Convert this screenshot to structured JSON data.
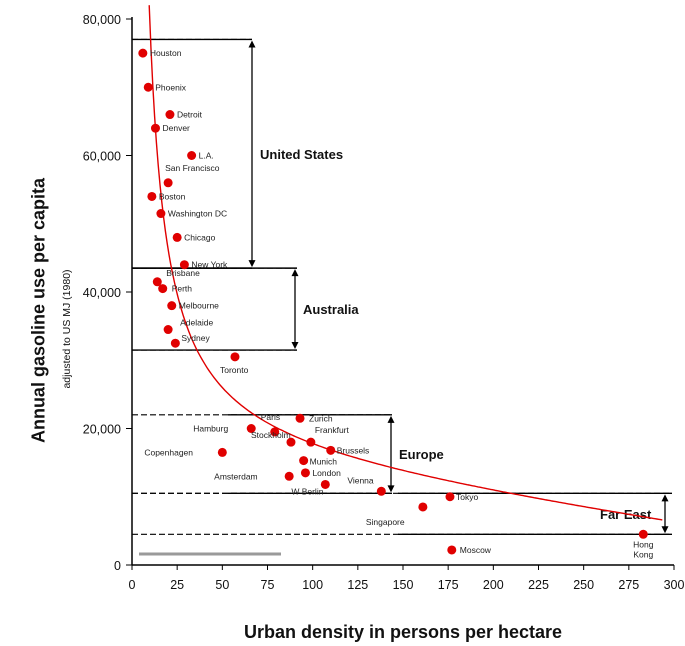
{
  "chart_data": {
    "type": "scatter",
    "xlabel": "Urban density in persons per hectare",
    "ylabel": "Annual gasoline use per capita",
    "ylabel_sub": "adjusted to US MJ (1980)",
    "xlim": [
      0,
      300
    ],
    "ylim": [
      0,
      80000
    ],
    "x_ticks": [
      0,
      25,
      50,
      75,
      100,
      125,
      150,
      175,
      200,
      225,
      250,
      275,
      300
    ],
    "y_ticks": [
      0,
      20000,
      40000,
      60000,
      80000
    ],
    "y_tick_labels": [
      "0",
      "20,000",
      "40,000",
      "60,000",
      "80,000"
    ],
    "grid": false,
    "point_color": "#e00000",
    "curve_color": "#e00000",
    "points": [
      {
        "label": "Houston",
        "x": 6,
        "y": 75000
      },
      {
        "label": "Phoenix",
        "x": 9,
        "y": 70000
      },
      {
        "label": "Detroit",
        "x": 21,
        "y": 66000
      },
      {
        "label": "Denver",
        "x": 13,
        "y": 64000
      },
      {
        "label": "L.A.",
        "x": 33,
        "y": 60000
      },
      {
        "label": "San Francisco",
        "x": 20,
        "y": 56000
      },
      {
        "label": "Boston",
        "x": 11,
        "y": 54000
      },
      {
        "label": "Washington DC",
        "x": 16,
        "y": 51500
      },
      {
        "label": "Chicago",
        "x": 25,
        "y": 48000
      },
      {
        "label": "New York",
        "x": 29,
        "y": 44000
      },
      {
        "label": "Brisbane",
        "x": 14,
        "y": 41500
      },
      {
        "label": "Perth",
        "x": 17,
        "y": 40500
      },
      {
        "label": "Melbourne",
        "x": 22,
        "y": 38000
      },
      {
        "label": "Adelaide",
        "x": 20,
        "y": 34500
      },
      {
        "label": "Sydney",
        "x": 24,
        "y": 32500
      },
      {
        "label": "Toronto",
        "x": 57,
        "y": 30500
      },
      {
        "label": "Hamburg",
        "x": 66,
        "y": 20000
      },
      {
        "label": "Paris",
        "x": 79,
        "y": 19500
      },
      {
        "label": "Zurich",
        "x": 93,
        "y": 21500
      },
      {
        "label": "Frankfurt",
        "x": 99,
        "y": 18000
      },
      {
        "label": "Stockholm",
        "x": 88,
        "y": 18000
      },
      {
        "label": "Copenhagen",
        "x": 50,
        "y": 16500
      },
      {
        "label": "Brussels",
        "x": 110,
        "y": 16800
      },
      {
        "label": "Munich",
        "x": 95,
        "y": 15300
      },
      {
        "label": "London",
        "x": 96,
        "y": 13500
      },
      {
        "label": "Amsterdam",
        "x": 87,
        "y": 13000
      },
      {
        "label": "W Berlin",
        "x": 107,
        "y": 11800
      },
      {
        "label": "Vienna",
        "x": 138,
        "y": 10800
      },
      {
        "label": "Tokyo",
        "x": 176,
        "y": 10000
      },
      {
        "label": "Singapore",
        "x": 161,
        "y": 8500
      },
      {
        "label": "Hong Kong",
        "x": 283,
        "y": 4500
      },
      {
        "label": "Moscow",
        "x": 177,
        "y": 2200
      }
    ],
    "groups": [
      {
        "label": "United States",
        "y_range": [
          43500,
          77000
        ]
      },
      {
        "label": "Australia",
        "y_range": [
          31500,
          43500
        ]
      },
      {
        "label": "Europe",
        "y_range": [
          10500,
          22000
        ]
      },
      {
        "label": "Far East",
        "y_range": [
          4500,
          10500
        ]
      }
    ]
  }
}
